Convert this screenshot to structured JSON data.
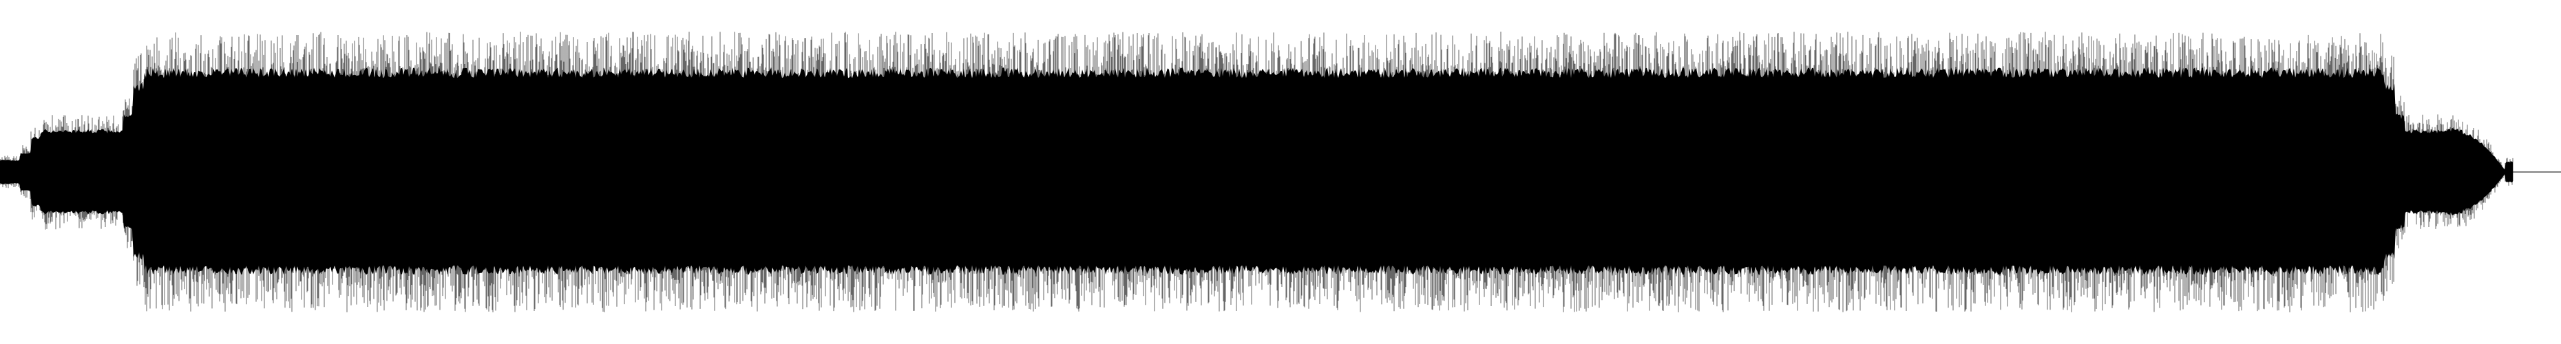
{
  "waveform": {
    "color": "#000000",
    "background": "#ffffff",
    "channels": "mono",
    "envelope": {
      "description_segments": [
        {
          "start": 0.0,
          "end": 0.012,
          "level": 0.1
        },
        {
          "start": 0.012,
          "end": 0.052,
          "level": 0.35
        },
        {
          "start": 0.052,
          "end": 0.935,
          "level": 0.85
        },
        {
          "start": 0.935,
          "end": 0.978,
          "level": 0.35
        },
        {
          "start": 0.978,
          "end": 1.0,
          "level": 0.0
        }
      ]
    }
  }
}
